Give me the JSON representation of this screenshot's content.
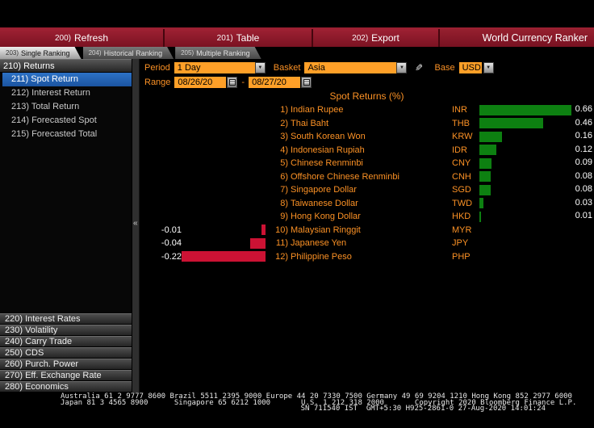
{
  "toolbar": {
    "buttons": [
      {
        "prefix": "200)",
        "label": "Refresh"
      },
      {
        "prefix": "201)",
        "label": "Table"
      },
      {
        "prefix": "202)",
        "label": "Export"
      }
    ],
    "app_title": "World Currency Ranker"
  },
  "tabs": [
    {
      "prefix": "203)",
      "label": "Single Ranking",
      "active": true
    },
    {
      "prefix": "204)",
      "label": "Historical Ranking",
      "active": false
    },
    {
      "prefix": "205)",
      "label": "Multiple Ranking",
      "active": false
    }
  ],
  "sidebar": {
    "header": "210) Returns",
    "items": [
      {
        "label": "211) Spot Return",
        "selected": true
      },
      {
        "label": "212) Interest Return",
        "selected": false
      },
      {
        "label": "213) Total Return",
        "selected": false
      },
      {
        "label": "214) Forecasted Spot",
        "selected": false
      },
      {
        "label": "215) Forecasted Total",
        "selected": false
      }
    ],
    "bottom_items": [
      "220) Interest Rates",
      "230) Volatility",
      "240) Carry Trade",
      "250) CDS",
      "260) Purch. Power",
      "270) Eff. Exchange Rate",
      "280) Economics"
    ],
    "collapse_glyph": "«"
  },
  "controls": {
    "period_label": "Period",
    "period_value": "1 Day",
    "basket_label": "Basket",
    "basket_value": "Asia",
    "base_label": "Base",
    "base_value": "USD",
    "range_label": "Range",
    "range_start": "08/26/20",
    "range_separator": "-",
    "range_end": "08/27/20"
  },
  "icons": {
    "chevron_down": "▼",
    "pencil": "✎"
  },
  "chart_data": {
    "type": "bar",
    "orientation": "horizontal",
    "title": "Spot Returns (%)",
    "unit": "%",
    "grid": false,
    "legend": false,
    "ranks": [
      "1)",
      "2)",
      "3)",
      "4)",
      "5)",
      "6)",
      "7)",
      "8)",
      "9)",
      "10)",
      "11)",
      "12)"
    ],
    "categories": [
      "Indian Rupee",
      "Thai Baht",
      "South Korean Won",
      "Indonesian Rupiah",
      "Chinese Renminbi",
      "Offshore Chinese Renminbi",
      "Singapore Dollar",
      "Taiwanese Dollar",
      "Hong Kong Dollar",
      "Malaysian Ringgit",
      "Japanese Yen",
      "Philippine Peso"
    ],
    "codes": [
      "INR",
      "THB",
      "KRW",
      "IDR",
      "CNY",
      "CNH",
      "SGD",
      "TWD",
      "HKD",
      "MYR",
      "JPY",
      "PHP"
    ],
    "values": [
      0.66,
      0.46,
      0.16,
      0.12,
      0.09,
      0.08,
      0.08,
      0.03,
      0.01,
      -0.01,
      -0.04,
      -0.22
    ],
    "value_labels": [
      "0.66",
      "0.46",
      "0.16",
      "0.12",
      "0.09",
      "0.08",
      "0.08",
      "0.03",
      "0.01",
      "-0.01",
      "-0.04",
      "-0.22"
    ],
    "positive_color": "#0d8011",
    "negative_color": "#cc1234"
  },
  "footer": {
    "line1": "Australia 61 2 9777 8600 Brazil 5511 2395 9000 Europe 44 20 7330 7500 Germany 49 69 9204 1210 Hong Kong 852 2977 6000",
    "line2": "Japan 81 3 4565 8900      Singapore 65 6212 1000       U.S. 1 212 318 2000       Copyright 2020 Bloomberg Finance L.P.",
    "line3": "SN 711540 IST  GMT+5:30 H925-2861-0 27-Aug-2020 14:01:24"
  },
  "colors": {
    "accent_orange": "#fb9125",
    "input_orange": "#ffa028",
    "toolbar_red": "#8e1c2c",
    "selected_blue": "#1f63b5",
    "positive_green": "#0d8011",
    "negative_red": "#cc1234"
  }
}
